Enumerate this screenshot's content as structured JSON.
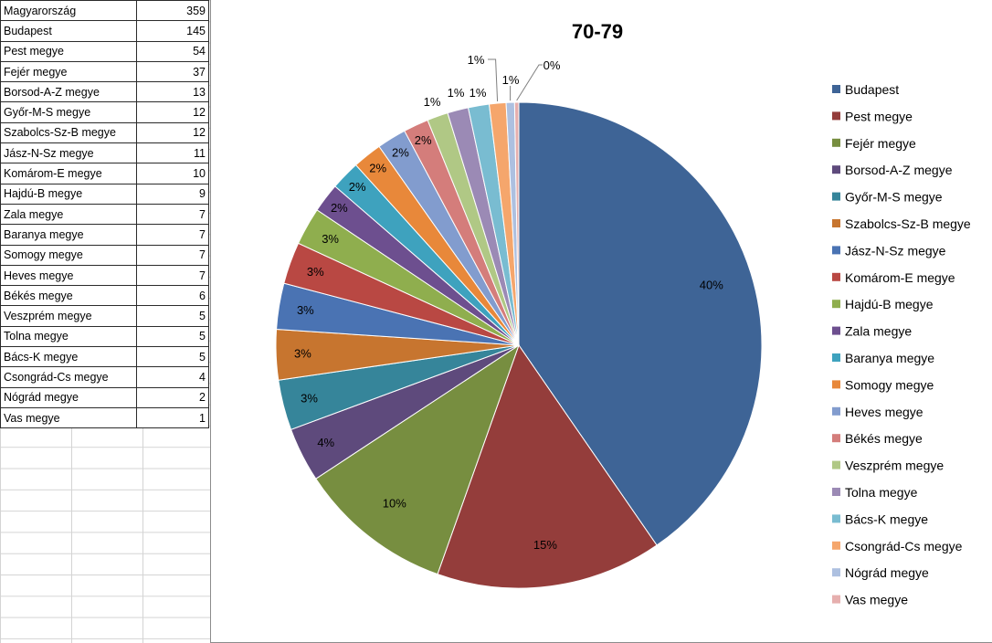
{
  "table": {
    "rows": [
      {
        "name": "Magyarország",
        "value": "359"
      },
      {
        "name": "Budapest",
        "value": "145"
      },
      {
        "name": "Pest megye",
        "value": "54"
      },
      {
        "name": "Fejér megye",
        "value": "37"
      },
      {
        "name": "Borsod-A-Z megye",
        "value": "13"
      },
      {
        "name": "Győr-M-S megye",
        "value": "12"
      },
      {
        "name": "Szabolcs-Sz-B megye",
        "value": "12"
      },
      {
        "name": "Jász-N-Sz megye",
        "value": "11"
      },
      {
        "name": "Komárom-E megye",
        "value": "10"
      },
      {
        "name": "Hajdú-B megye",
        "value": "9"
      },
      {
        "name": "Zala megye",
        "value": "7"
      },
      {
        "name": "Baranya megye",
        "value": "7"
      },
      {
        "name": "Somogy megye",
        "value": "7"
      },
      {
        "name": "Heves megye",
        "value": "7"
      },
      {
        "name": "Békés megye",
        "value": "6"
      },
      {
        "name": "Veszprém megye",
        "value": "5"
      },
      {
        "name": "Tolna megye",
        "value": "5"
      },
      {
        "name": "Bács-K megye",
        "value": "5"
      },
      {
        "name": "Csongrád-Cs megye",
        "value": "4"
      },
      {
        "name": "Nógrád megye",
        "value": "2"
      },
      {
        "name": "Vas megye",
        "value": "1"
      }
    ]
  },
  "chart_data": {
    "type": "pie",
    "title": "70-79",
    "legend_position": "right",
    "categories": [
      "Budapest",
      "Pest megye",
      "Fejér megye",
      "Borsod-A-Z megye",
      "Győr-M-S megye",
      "Szabolcs-Sz-B megye",
      "Jász-N-Sz megye",
      "Komárom-E megye",
      "Hajdú-B megye",
      "Zala megye",
      "Baranya megye",
      "Somogy megye",
      "Heves megye",
      "Békés megye",
      "Veszprém megye",
      "Tolna megye",
      "Bács-K megye",
      "Csongrád-Cs megye",
      "Nógrád megye",
      "Vas megye"
    ],
    "values": [
      145,
      54,
      37,
      13,
      12,
      12,
      11,
      10,
      9,
      7,
      7,
      7,
      7,
      6,
      5,
      5,
      5,
      4,
      2,
      1
    ],
    "labels": [
      "40%",
      "15%",
      "10%",
      "4%",
      "3%",
      "3%",
      "3%",
      "3%",
      "3%",
      "2%",
      "2%",
      "2%",
      "2%",
      "2%",
      "1%",
      "1%",
      "1%",
      "1%",
      "1%",
      "0%"
    ],
    "colors": [
      "#3e6496",
      "#943d3b",
      "#778e40",
      "#5e4a7c",
      "#36859a",
      "#c7752f",
      "#4a73b3",
      "#b94843",
      "#8fae4e",
      "#6d4f8f",
      "#3ea2be",
      "#e8883a",
      "#829cce",
      "#d47d7b",
      "#b0c885",
      "#9b8ab5",
      "#79bcd1",
      "#f5a66c",
      "#adc0e0",
      "#e6afae"
    ]
  }
}
